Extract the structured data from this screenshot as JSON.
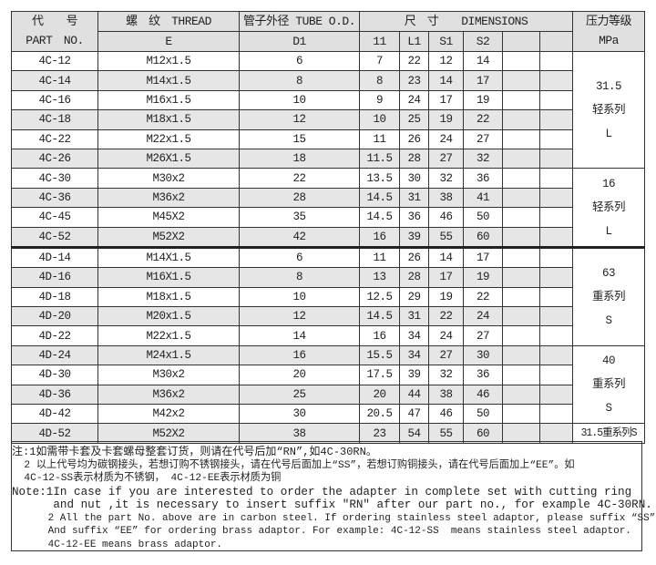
{
  "header": {
    "part_cn": "代　　号",
    "part_en": "PART　NO.",
    "thread_cn": "螺　纹　THREAD",
    "thread_sub": "E",
    "tube_cn": "管子外径 TUBE O.D.",
    "tube_sub": "D1",
    "dim_cn": "尺　寸　　DIMENSIONS",
    "dim_cols": [
      "11",
      "L1",
      "S1",
      "S2",
      "",
      ""
    ],
    "pressure_cn": "压力等级",
    "pressure_unit": "MPa"
  },
  "rows": [
    [
      "4C-12",
      "M12x1.5",
      "6",
      "7",
      "22",
      "12",
      "14"
    ],
    [
      "4C-14",
      "M14x1.5",
      "8",
      "8",
      "23",
      "14",
      "17"
    ],
    [
      "4C-16",
      "M16x1.5",
      "10",
      "9",
      "24",
      "17",
      "19"
    ],
    [
      "4C-18",
      "M18x1.5",
      "12",
      "10",
      "25",
      "19",
      "22"
    ],
    [
      "4C-22",
      "M22x1.5",
      "15",
      "11",
      "26",
      "24",
      "27"
    ],
    [
      "4C-26",
      "M26X1.5",
      "18",
      "11.5",
      "28",
      "27",
      "32"
    ],
    [
      "4C-30",
      "M30x2",
      "22",
      "13.5",
      "30",
      "32",
      "36"
    ],
    [
      "4C-36",
      "M36x2",
      "28",
      "14.5",
      "31",
      "38",
      "41"
    ],
    [
      "4C-45",
      "M45X2",
      "35",
      "14.5",
      "36",
      "46",
      "50"
    ],
    [
      "4C-52",
      "M52X2",
      "42",
      "16",
      "39",
      "55",
      "60"
    ],
    [
      "4D-14",
      "M14X1.5",
      "6",
      "11",
      "26",
      "14",
      "17"
    ],
    [
      "4D-16",
      "M16X1.5",
      "8",
      "13",
      "28",
      "17",
      "19"
    ],
    [
      "4D-18",
      "M18x1.5",
      "10",
      "12.5",
      "29",
      "19",
      "22"
    ],
    [
      "4D-20",
      "M20x1.5",
      "12",
      "14.5",
      "31",
      "22",
      "24"
    ],
    [
      "4D-22",
      "M22x1.5",
      "14",
      "16",
      "34",
      "24",
      "27"
    ],
    [
      "4D-24",
      "M24x1.5",
      "16",
      "15.5",
      "34",
      "27",
      "30"
    ],
    [
      "4D-30",
      "M30x2",
      "20",
      "17.5",
      "39",
      "32",
      "36"
    ],
    [
      "4D-36",
      "M36x2",
      "25",
      "20",
      "44",
      "38",
      "46"
    ],
    [
      "4D-42",
      "M42x2",
      "30",
      "20.5",
      "47",
      "46",
      "50"
    ],
    [
      "4D-52",
      "M52X2",
      "38",
      "23",
      "54",
      "55",
      "60"
    ]
  ],
  "pressure_groups": [
    {
      "start": 0,
      "span": 6,
      "lines": [
        "31.5",
        "轻系列",
        "L"
      ]
    },
    {
      "start": 6,
      "span": 4,
      "lines": [
        "16",
        "轻系列",
        "L"
      ]
    },
    {
      "start": 10,
      "span": 5,
      "lines": [
        "63",
        "重系列",
        "S"
      ]
    },
    {
      "start": 15,
      "span": 4,
      "lines": [
        "40",
        "重系列",
        "S"
      ]
    },
    {
      "start": 19,
      "span": 1,
      "lines": [
        "31.5重系列S"
      ]
    }
  ],
  "notes": {
    "cn1": "注:1如需带卡套及卡套螺母整套订货，则请在代号后加“RN”,如4C-30RN。",
    "cn2a": "  2 以上代号均为碳钢接头，若想订购不锈钢接头，请在代号后面加上“SS”，若想订购铜接头，请在代号后面加上“EE”。如",
    "cn2b": "  4C-12-SS表示材质为不锈钢， 4C-12-EE表示材质为铜",
    "en1a": "Note:1In case if you are interested to order the adapter in complete set with cutting ring",
    "en1b": "      and nut ,it is necessary to insert suffix \"RN\" after our part no., for example 4C-30RN.",
    "en2a": "      2 All the part No. above are in carbon steel. If ordering stainless steel adaptor, please suffix “SS” .",
    "en2b": "      And suffix “EE” for ordering brass adaptor. For example: 4C-12-SS  means stainless steel adaptor.",
    "en2c": "      4C-12-EE means brass adaptor."
  }
}
